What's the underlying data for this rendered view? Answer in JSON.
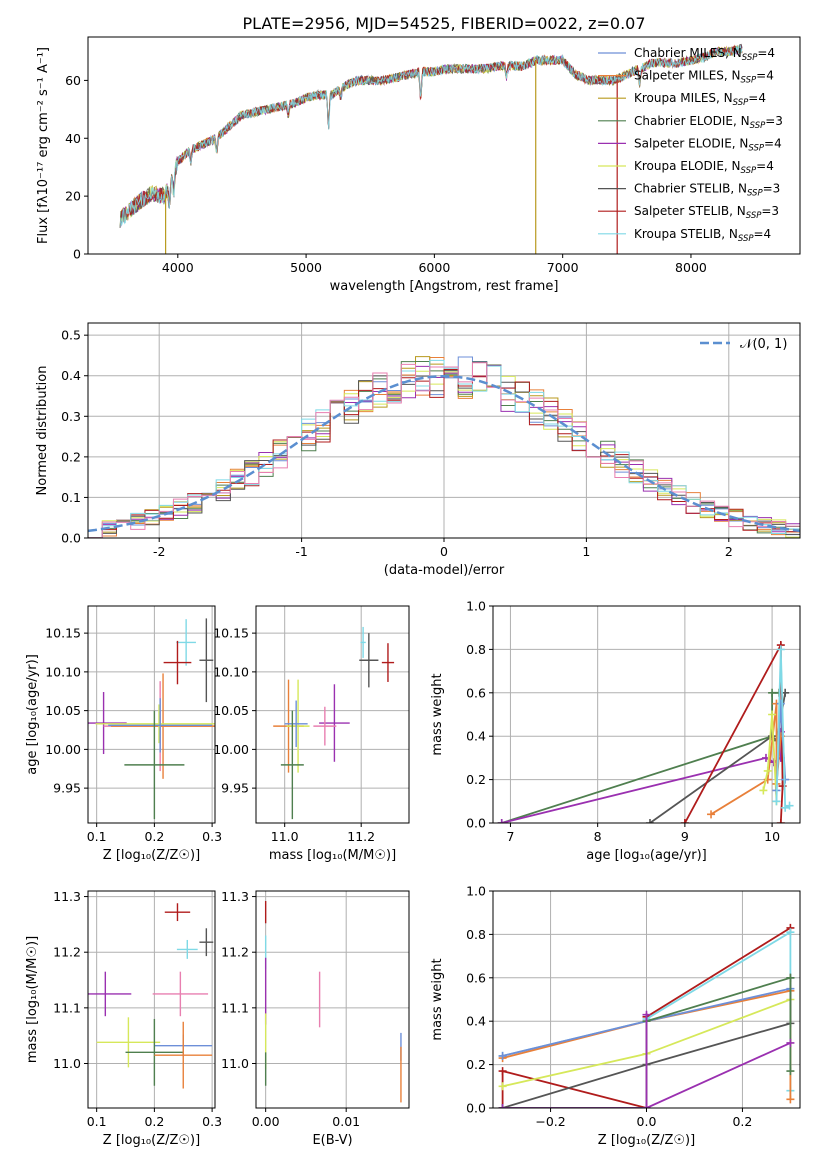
{
  "figure": {
    "title": "PLATE=2956, MJD=54525, FIBERID=0022, z=0.07"
  },
  "colors": {
    "chabrier_miles": "#6d8fd8",
    "salpeter_miles": "#e8803a",
    "kroupa_miles": "#b89a1e",
    "chabrier_elodie": "#4f7f4f",
    "salpeter_elodie": "#9a30b0",
    "kroupa_elodie": "#d6e85a",
    "chabrier_stelib": "#555555",
    "salpeter_stelib": "#b01c1c",
    "kroupa_stelib": "#7fd9e6",
    "pink": "#e87fb0",
    "normal_curve": "#5b8fd0",
    "grid": "#b0b0b0"
  },
  "chart_data": [
    {
      "id": "spectrum",
      "type": "line",
      "xlabel": "wavelength [Angstrom, rest frame]",
      "ylabel": "Flux [fλ10⁻¹⁷ erg cm⁻² s⁻¹ A⁻¹]",
      "xlim": [
        3300,
        8850
      ],
      "ylim": [
        0,
        75
      ],
      "xticks": [
        4000,
        5000,
        6000,
        7000,
        8000
      ],
      "yticks": [
        0,
        20,
        40,
        60
      ],
      "grid": false,
      "legend_position": "top-right",
      "legend": [
        {
          "label": "Chabrier MILES, N",
          "sub": "SSP",
          "tail": "=4",
          "color": "#6d8fd8"
        },
        {
          "label": "Salpeter MILES, N",
          "sub": "SSP",
          "tail": "=4",
          "color": "#e8803a"
        },
        {
          "label": "Kroupa MILES, N",
          "sub": "SSP",
          "tail": "=4",
          "color": "#b89a1e"
        },
        {
          "label": "Chabrier ELODIE, N",
          "sub": "SSP",
          "tail": "=3",
          "color": "#4f7f4f"
        },
        {
          "label": "Salpeter ELODIE, N",
          "sub": "SSP",
          "tail": "=4",
          "color": "#9a30b0"
        },
        {
          "label": "Kroupa ELODIE, N",
          "sub": "SSP",
          "tail": "=4",
          "color": "#d6e85a"
        },
        {
          "label": "Chabrier STELIB, N",
          "sub": "SSP",
          "tail": "=3",
          "color": "#555555"
        },
        {
          "label": "Salpeter STELIB, N",
          "sub": "SSP",
          "tail": "=3",
          "color": "#b01c1c"
        },
        {
          "label": "Kroupa STELIB, N",
          "sub": "SSP",
          "tail": "=4",
          "color": "#7fd9e6"
        }
      ],
      "continuum": {
        "x": [
          3550,
          3600,
          3700,
          3800,
          3900,
          4000,
          4100,
          4200,
          4300,
          4400,
          4500,
          4600,
          4700,
          4800,
          4900,
          5000,
          5100,
          5200,
          5300,
          5400,
          5500,
          5600,
          5700,
          5800,
          5900,
          6000,
          6100,
          6200,
          6300,
          6400,
          6500,
          6600,
          6700,
          6800,
          6900,
          7000,
          7100,
          7200,
          7300,
          7400,
          7500,
          7600,
          7700,
          7800,
          7900,
          8000,
          8100,
          8200,
          8300,
          8400
        ],
        "y": [
          12,
          14,
          18,
          21,
          20,
          32,
          36,
          38,
          40,
          44,
          48,
          49,
          50,
          51,
          52,
          54,
          55,
          55,
          58,
          60,
          60,
          60,
          61,
          62,
          63,
          63,
          64,
          64,
          64,
          64,
          65,
          65,
          65,
          67,
          67,
          67,
          62,
          60,
          60,
          60,
          62,
          64,
          66,
          66,
          66,
          67,
          68,
          70,
          70,
          71
        ]
      },
      "absorption_lines": [
        {
          "x": 3934,
          "depth": 8
        },
        {
          "x": 3968,
          "depth": 7
        },
        {
          "x": 4102,
          "depth": 4
        },
        {
          "x": 4304,
          "depth": 5
        },
        {
          "x": 4861,
          "depth": 4
        },
        {
          "x": 5175,
          "depth": 12
        },
        {
          "x": 5270,
          "depth": 3
        },
        {
          "x": 5893,
          "depth": 10
        },
        {
          "x": 6563,
          "depth": 4
        },
        {
          "x": 7600,
          "depth": 6
        }
      ],
      "spikes": [
        {
          "x": 3905,
          "to": 0,
          "color": "#b89a1e"
        },
        {
          "x": 6790,
          "to": 0,
          "color": "#b89a1e"
        },
        {
          "x": 7425,
          "to": 0,
          "color": "#b01c1c"
        }
      ]
    },
    {
      "id": "residuals",
      "type": "line",
      "xlabel": "(data-model)/error",
      "ylabel": "Normed distribution",
      "xlim": [
        -2.5,
        2.5
      ],
      "ylim": [
        0,
        0.53
      ],
      "xticks": [
        -2,
        -1,
        0,
        1,
        2
      ],
      "yticks": [
        0.0,
        0.1,
        0.2,
        0.3,
        0.4,
        0.5
      ],
      "ytick_labels": [
        "0.0",
        "0.1",
        "0.2",
        "0.3",
        "0.4",
        "0.5"
      ],
      "grid": true,
      "legend_position": "top-right",
      "legend": [
        {
          "label": "𝒩(0, 1)",
          "color": "#5b8fd0",
          "style": "dashed"
        }
      ],
      "histogram": {
        "bin_start": -2.5,
        "bin_width": 0.1,
        "n_bins": 50
      }
    },
    {
      "id": "age_vs_Z",
      "type": "scatter",
      "xlabel": "Z [log₁₀(Z/Z☉)]",
      "ylabel": "age  [log₁₀(age/yr)]",
      "xlim": [
        0.085,
        0.305
      ],
      "ylim": [
        9.905,
        10.185
      ],
      "xticks": [
        0.1,
        0.2,
        0.3
      ],
      "yticks": [
        9.95,
        10.0,
        10.05,
        10.1,
        10.15
      ],
      "xtick_labels": [
        "0.1",
        "0.2",
        "0.3"
      ],
      "ytick_labels": [
        "9.95",
        "10.00",
        "10.05",
        "10.10",
        "10.15"
      ],
      "grid": true,
      "points": [
        {
          "x": 0.255,
          "y": 10.138,
          "xerr": 0.017,
          "yerr": 0.03,
          "color": "#7fd9e6"
        },
        {
          "x": 0.24,
          "y": 10.112,
          "xerr": 0.024,
          "yerr": 0.028,
          "color": "#b01c1c"
        },
        {
          "x": 0.29,
          "y": 10.115,
          "xerr": 0.012,
          "yerr": 0.054,
          "color": "#555555"
        },
        {
          "x": 0.112,
          "y": 10.034,
          "xerr": 0.04,
          "yerr": 0.04,
          "color": "#9a30b0"
        },
        {
          "x": 0.21,
          "y": 10.03,
          "xerr": 0.098,
          "yerr": 0.058,
          "color": "#e87fb0"
        },
        {
          "x": 0.215,
          "y": 10.03,
          "xerr": 0.09,
          "yerr": 0.068,
          "color": "#e8803a"
        },
        {
          "x": 0.208,
          "y": 10.033,
          "xerr": 0.11,
          "yerr": 0.025,
          "color": "#d6e85a"
        },
        {
          "x": 0.21,
          "y": 10.031,
          "xerr": 0.09,
          "yerr": 0.035,
          "color": "#6d8fd8"
        },
        {
          "x": 0.2,
          "y": 9.98,
          "xerr": 0.052,
          "yerr": 0.07,
          "color": "#4f7f4f"
        }
      ]
    },
    {
      "id": "age_vs_mass",
      "type": "scatter",
      "xlabel": "mass [log₁₀(M/M☉)]",
      "ylabel": "",
      "xlim": [
        10.925,
        11.325
      ],
      "ylim": [
        9.905,
        10.185
      ],
      "xticks": [
        11.0,
        11.2
      ],
      "yticks": [
        9.95,
        10.0,
        10.05,
        10.1,
        10.15
      ],
      "xtick_labels": [
        "11.0",
        "11.2"
      ],
      "ytick_labels": [
        "9.95",
        "10.00",
        "10.05",
        "10.10",
        "10.15"
      ],
      "grid": true,
      "points": [
        {
          "x": 11.205,
          "y": 10.138,
          "xerr": 0.007,
          "yerr": 0.02,
          "color": "#7fd9e6"
        },
        {
          "x": 11.27,
          "y": 10.112,
          "xerr": 0.016,
          "yerr": 0.025,
          "color": "#b01c1c"
        },
        {
          "x": 11.22,
          "y": 10.115,
          "xerr": 0.025,
          "yerr": 0.035,
          "color": "#555555"
        },
        {
          "x": 11.13,
          "y": 10.034,
          "xerr": 0.04,
          "yerr": 0.05,
          "color": "#9a30b0"
        },
        {
          "x": 11.105,
          "y": 10.03,
          "xerr": 0.03,
          "yerr": 0.025,
          "color": "#e87fb0"
        },
        {
          "x": 11.01,
          "y": 10.03,
          "xerr": 0.04,
          "yerr": 0.06,
          "color": "#e8803a"
        },
        {
          "x": 11.035,
          "y": 10.03,
          "xerr": 0.03,
          "yerr": 0.06,
          "color": "#d6e85a"
        },
        {
          "x": 11.03,
          "y": 10.033,
          "xerr": 0.03,
          "yerr": 0.03,
          "color": "#6d8fd8"
        },
        {
          "x": 11.02,
          "y": 9.98,
          "xerr": 0.03,
          "yerr": 0.07,
          "color": "#4f7f4f"
        }
      ]
    },
    {
      "id": "mass_weight_vs_age",
      "type": "line",
      "xlabel": "age  [log₁₀(age/yr)]",
      "ylabel": "mass weight",
      "xlim": [
        6.8,
        10.32
      ],
      "ylim": [
        0,
        1.0
      ],
      "xticks": [
        7,
        8,
        9,
        10
      ],
      "yticks": [
        0.0,
        0.2,
        0.4,
        0.6,
        0.8,
        1.0
      ],
      "ytick_labels": [
        "0.0",
        "0.2",
        "0.4",
        "0.6",
        "0.8",
        "1.0"
      ],
      "grid": true,
      "series": [
        {
          "color": "#4f7f4f",
          "x": [
            6.9,
            10.0,
            10.0,
            10.08
          ],
          "y": [
            0.0,
            0.4,
            0.6,
            0.6
          ]
        },
        {
          "color": "#9a30b0",
          "x": [
            6.9,
            9.93,
            10.02,
            10.1,
            10.1
          ],
          "y": [
            0.0,
            0.3,
            0.28,
            0.3,
            0.42
          ]
        },
        {
          "color": "#555555",
          "x": [
            8.6,
            10.0,
            10.05,
            10.15
          ],
          "y": [
            0.0,
            0.4,
            0.38,
            0.6
          ]
        },
        {
          "color": "#b01c1c",
          "x": [
            9.0,
            10.1,
            10.12,
            10.1
          ],
          "y": [
            0.0,
            0.82,
            0.17,
            0.0
          ]
        },
        {
          "color": "#e8803a",
          "x": [
            9.3,
            9.95,
            10.05,
            10.05,
            10.1
          ],
          "y": [
            0.04,
            0.2,
            0.55,
            0.18,
            0.4
          ]
        },
        {
          "color": "#d6e85a",
          "x": [
            9.9,
            9.95,
            10.0,
            10.05
          ],
          "y": [
            0.15,
            0.24,
            0.5,
            0.1
          ]
        },
        {
          "color": "#6d8fd8",
          "x": [
            10.05,
            10.1,
            10.15
          ],
          "y": [
            0.15,
            0.55,
            0.2
          ]
        },
        {
          "color": "#7fd9e6",
          "x": [
            10.05,
            10.1,
            10.15,
            10.2
          ],
          "y": [
            0.1,
            0.8,
            0.07,
            0.08
          ]
        }
      ]
    },
    {
      "id": "mass_vs_Z",
      "type": "scatter",
      "xlabel": "Z [log₁₀(Z/Z☉)]",
      "ylabel": "mass [log₁₀(M/M☉)]",
      "xlim": [
        0.085,
        0.305
      ],
      "ylim": [
        10.92,
        11.31
      ],
      "xticks": [
        0.1,
        0.2,
        0.3
      ],
      "yticks": [
        11.0,
        11.1,
        11.2,
        11.3
      ],
      "xtick_labels": [
        "0.1",
        "0.2",
        "0.3"
      ],
      "ytick_labels": [
        "11.0",
        "11.1",
        "11.2",
        "11.3"
      ],
      "grid": true,
      "points": [
        {
          "x": 0.24,
          "y": 11.272,
          "xerr": 0.022,
          "yerr": 0.016,
          "color": "#b01c1c"
        },
        {
          "x": 0.29,
          "y": 11.218,
          "xerr": 0.012,
          "yerr": 0.025,
          "color": "#555555"
        },
        {
          "x": 0.257,
          "y": 11.205,
          "xerr": 0.018,
          "yerr": 0.017,
          "color": "#7fd9e6"
        },
        {
          "x": 0.115,
          "y": 11.125,
          "xerr": 0.045,
          "yerr": 0.04,
          "color": "#9a30b0"
        },
        {
          "x": 0.245,
          "y": 11.125,
          "xerr": 0.048,
          "yerr": 0.04,
          "color": "#e87fb0"
        },
        {
          "x": 0.155,
          "y": 11.038,
          "xerr": 0.055,
          "yerr": 0.045,
          "color": "#d6e85a"
        },
        {
          "x": 0.25,
          "y": 11.032,
          "xerr": 0.05,
          "yerr": 0.02,
          "color": "#6d8fd8"
        },
        {
          "x": 0.2,
          "y": 11.02,
          "xerr": 0.05,
          "yerr": 0.06,
          "color": "#4f7f4f"
        },
        {
          "x": 0.25,
          "y": 11.015,
          "xerr": 0.05,
          "yerr": 0.06,
          "color": "#e8803a"
        }
      ]
    },
    {
      "id": "mass_vs_ebv",
      "type": "scatter",
      "xlabel": "E(B-V)",
      "ylabel": "",
      "xlim": [
        -0.0012,
        0.0178
      ],
      "ylim": [
        10.92,
        11.31
      ],
      "xticks": [
        0.0,
        0.01
      ],
      "yticks": [
        11.0,
        11.1,
        11.2,
        11.3
      ],
      "xtick_labels": [
        "0.00",
        "0.01"
      ],
      "ytick_labels": [
        "11.0",
        "11.1",
        "11.2",
        "11.3"
      ],
      "grid": true,
      "points": [
        {
          "x": 0.0,
          "y": 11.272,
          "xerr": 0.0,
          "yerr": 0.02,
          "color": "#b01c1c"
        },
        {
          "x": 0.0,
          "y": 11.2,
          "xerr": 0.0,
          "yerr": 0.03,
          "color": "#7fd9e6"
        },
        {
          "x": 0.0,
          "y": 11.13,
          "xerr": 0.0,
          "yerr": 0.06,
          "color": "#9a30b0"
        },
        {
          "x": 0.0,
          "y": 11.04,
          "xerr": 0.0,
          "yerr": 0.05,
          "color": "#d6e85a"
        },
        {
          "x": 0.0,
          "y": 10.99,
          "xerr": 0.0,
          "yerr": 0.03,
          "color": "#4f7f4f"
        },
        {
          "x": 0.0067,
          "y": 11.115,
          "xerr": 0.0,
          "yerr": 0.05,
          "color": "#e87fb0"
        },
        {
          "x": 0.0168,
          "y": 11.03,
          "xerr": 0.0,
          "yerr": 0.025,
          "color": "#6d8fd8"
        },
        {
          "x": 0.0168,
          "y": 10.98,
          "xerr": 0.0,
          "yerr": 0.05,
          "color": "#e8803a"
        }
      ]
    },
    {
      "id": "mass_weight_vs_Z",
      "type": "line",
      "xlabel": "Z [log₁₀(Z/Z☉)]",
      "ylabel": "mass weight",
      "xlim": [
        -0.32,
        0.32
      ],
      "ylim": [
        0,
        1.0
      ],
      "xticks": [
        -0.2,
        0.0,
        0.2
      ],
      "yticks": [
        0.0,
        0.2,
        0.4,
        0.6,
        0.8,
        1.0
      ],
      "xtick_labels": [
        "−0.2",
        "0.0",
        "0.2"
      ],
      "ytick_labels": [
        "0.0",
        "0.2",
        "0.4",
        "0.6",
        "0.8",
        "1.0"
      ],
      "grid": true,
      "series": [
        {
          "color": "#b01c1c",
          "x": [
            -0.3,
            -0.3,
            0.0,
            0.0,
            0.3
          ],
          "y": [
            0.0,
            0.17,
            0.0,
            0.42,
            0.83
          ]
        },
        {
          "color": "#7fd9e6",
          "x": [
            -0.3,
            0.0,
            0.0,
            0.3,
            0.3
          ],
          "y": [
            0.24,
            0.4,
            0.41,
            0.81,
            0.08
          ]
        },
        {
          "color": "#e8803a",
          "x": [
            -0.3,
            0.0,
            0.3,
            0.3
          ],
          "y": [
            0.23,
            0.4,
            0.54,
            0.04
          ]
        },
        {
          "color": "#6d8fd8",
          "x": [
            -0.3,
            0.0,
            0.3
          ],
          "y": [
            0.24,
            0.4,
            0.55
          ]
        },
        {
          "color": "#d6e85a",
          "x": [
            -0.3,
            0.0,
            0.3
          ],
          "y": [
            0.1,
            0.25,
            0.5
          ]
        },
        {
          "color": "#555555",
          "x": [
            -0.3,
            0.0,
            0.3,
            0.3
          ],
          "y": [
            0.0,
            0.2,
            0.39,
            0.6
          ]
        },
        {
          "color": "#4f7f4f",
          "x": [
            -0.3,
            0.0,
            0.0,
            0.3,
            0.3
          ],
          "y": [
            0.0,
            0.0,
            0.4,
            0.6,
            0.17
          ]
        },
        {
          "color": "#9a30b0",
          "x": [
            -0.3,
            0.0,
            0.0,
            0.0,
            0.3
          ],
          "y": [
            0.0,
            0.0,
            0.43,
            0.0,
            0.3
          ]
        }
      ]
    }
  ]
}
